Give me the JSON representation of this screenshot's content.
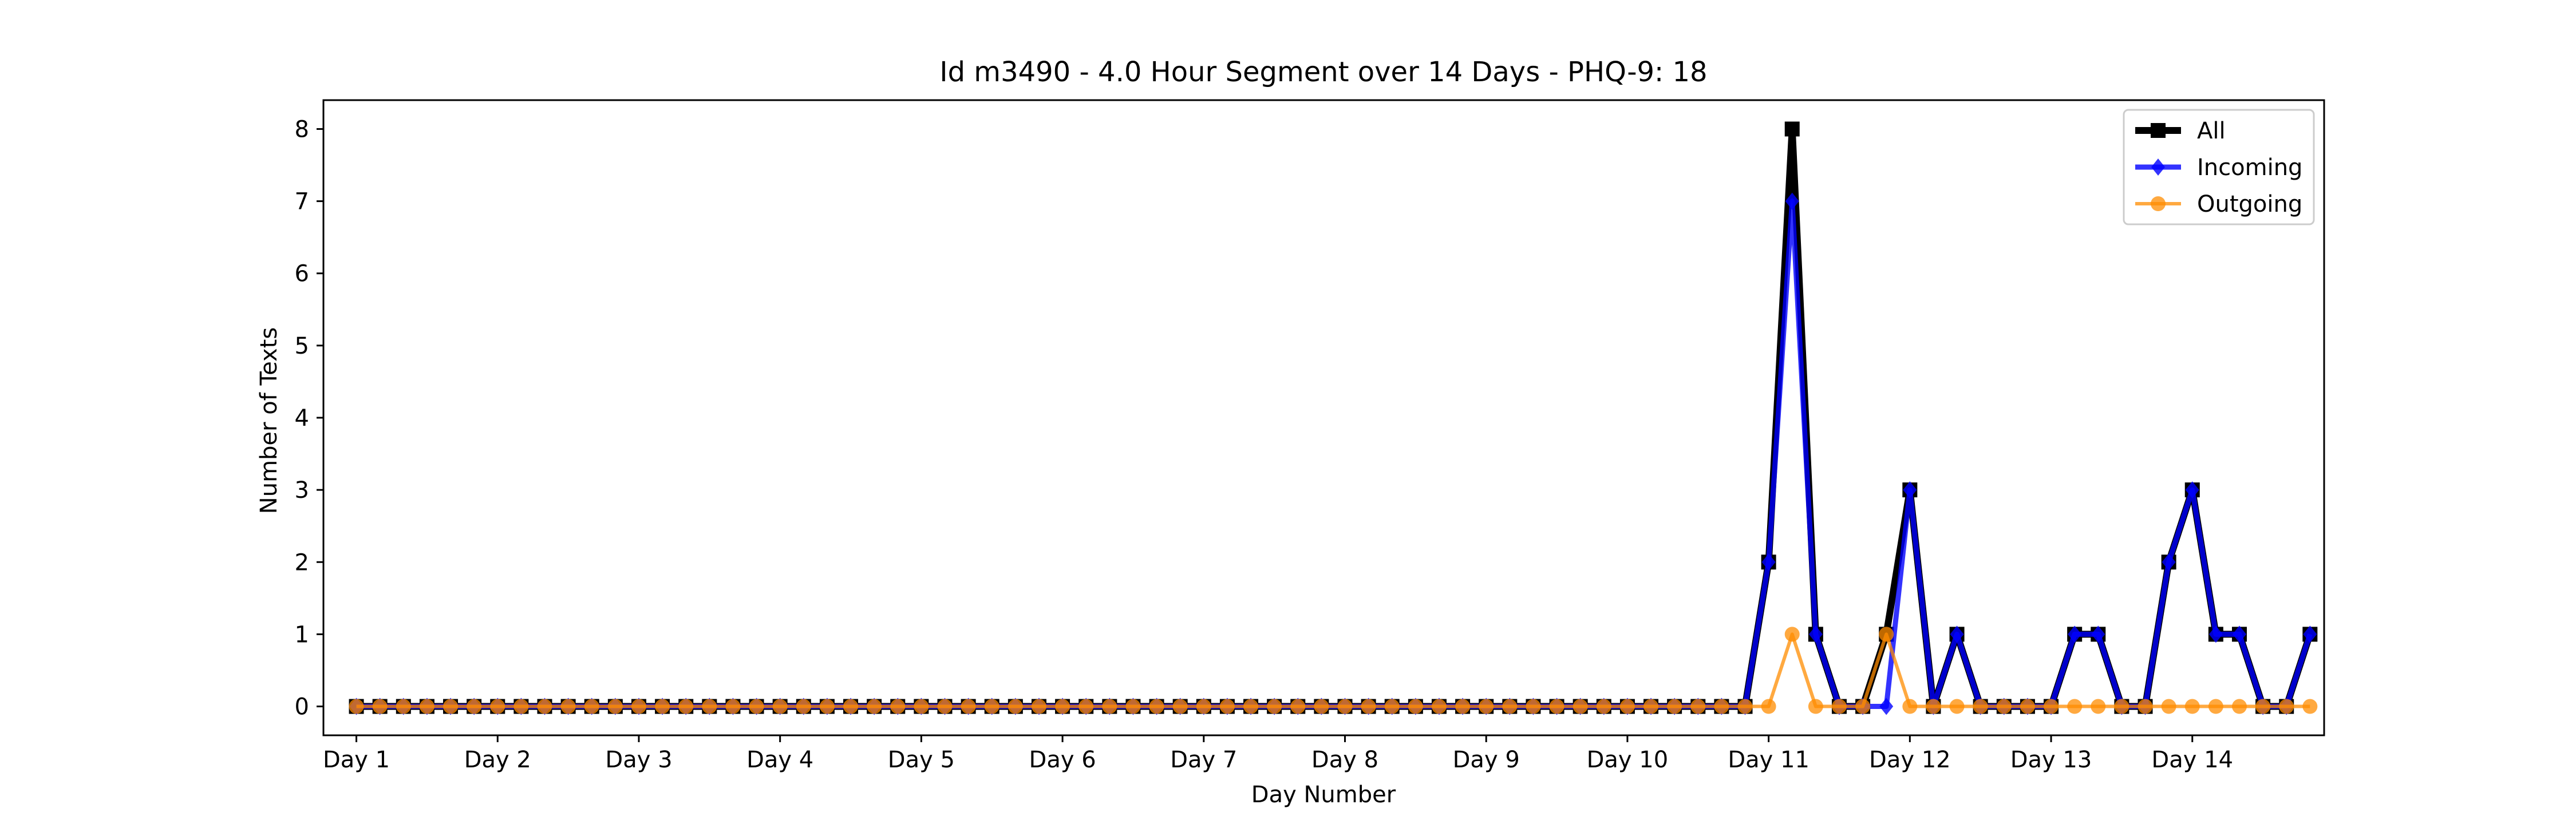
{
  "chart_data": {
    "type": "line",
    "title": "Id m3490 - 4.0 Hour Segment over 14 Days - PHQ-9: 18",
    "xlabel": "Day Number",
    "ylabel": "Number of Texts",
    "x_tick_labels": [
      "Day 1",
      "Day 2",
      "Day 3",
      "Day 4",
      "Day 5",
      "Day 6",
      "Day 7",
      "Day 8",
      "Day 9",
      "Day 10",
      "Day 11",
      "Day 12",
      "Day 13",
      "Day 14"
    ],
    "y_ticks": [
      0,
      1,
      2,
      3,
      4,
      5,
      6,
      7,
      8
    ],
    "ylim": [
      -0.4,
      8.4
    ],
    "grid": false,
    "legend_position": "top-right",
    "series": [
      {
        "name": "All",
        "color": "#000000",
        "marker": "square",
        "values": [
          0,
          0,
          0,
          0,
          0,
          0,
          0,
          0,
          0,
          0,
          0,
          0,
          0,
          0,
          0,
          0,
          0,
          0,
          0,
          0,
          0,
          0,
          0,
          0,
          0,
          0,
          0,
          0,
          0,
          0,
          0,
          0,
          0,
          0,
          0,
          0,
          0,
          0,
          0,
          0,
          0,
          0,
          0,
          0,
          0,
          0,
          0,
          0,
          0,
          0,
          0,
          0,
          0,
          0,
          0,
          0,
          0,
          0,
          0,
          0,
          2,
          8,
          1,
          0,
          0,
          1,
          3,
          0,
          1,
          0,
          0,
          0,
          0,
          1,
          1,
          0,
          0,
          2,
          3,
          1,
          1,
          0,
          0,
          1
        ]
      },
      {
        "name": "Incoming",
        "color": "#0000ff",
        "marker": "diamond",
        "values": [
          0,
          0,
          0,
          0,
          0,
          0,
          0,
          0,
          0,
          0,
          0,
          0,
          0,
          0,
          0,
          0,
          0,
          0,
          0,
          0,
          0,
          0,
          0,
          0,
          0,
          0,
          0,
          0,
          0,
          0,
          0,
          0,
          0,
          0,
          0,
          0,
          0,
          0,
          0,
          0,
          0,
          0,
          0,
          0,
          0,
          0,
          0,
          0,
          0,
          0,
          0,
          0,
          0,
          0,
          0,
          0,
          0,
          0,
          0,
          0,
          2,
          7,
          1,
          0,
          0,
          0,
          3,
          0,
          1,
          0,
          0,
          0,
          0,
          1,
          1,
          0,
          0,
          2,
          3,
          1,
          1,
          0,
          0,
          1
        ]
      },
      {
        "name": "Outgoing",
        "color": "#ff8c00",
        "marker": "circle",
        "values": [
          0,
          0,
          0,
          0,
          0,
          0,
          0,
          0,
          0,
          0,
          0,
          0,
          0,
          0,
          0,
          0,
          0,
          0,
          0,
          0,
          0,
          0,
          0,
          0,
          0,
          0,
          0,
          0,
          0,
          0,
          0,
          0,
          0,
          0,
          0,
          0,
          0,
          0,
          0,
          0,
          0,
          0,
          0,
          0,
          0,
          0,
          0,
          0,
          0,
          0,
          0,
          0,
          0,
          0,
          0,
          0,
          0,
          0,
          0,
          0,
          0,
          1,
          0,
          0,
          0,
          1,
          0,
          0,
          0,
          0,
          0,
          0,
          0,
          0,
          0,
          0,
          0,
          0,
          0,
          0,
          0,
          0,
          0,
          0
        ]
      }
    ]
  }
}
